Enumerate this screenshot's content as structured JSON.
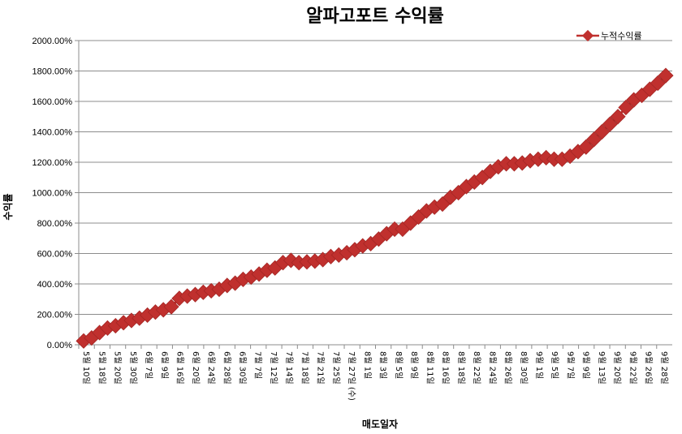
{
  "chart_data": {
    "type": "line",
    "title": "알파고포트 수익률",
    "xlabel": "매도일자",
    "ylabel": "수익률",
    "ylim": [
      0,
      2000
    ],
    "yticks": [
      "0.00%",
      "200.00%",
      "400.00%",
      "600.00%",
      "800.00%",
      "1000.00%",
      "1200.00%",
      "1400.00%",
      "1600.00%",
      "1800.00%",
      "2000.00%"
    ],
    "legend": {
      "position": "top-right"
    },
    "grid": true,
    "colors": {
      "series": "#c0302e",
      "gridline": "#8c8c8c",
      "axis": "#8c8c8c"
    },
    "x_tick_labels": [
      "5월 10일",
      "5월 18일",
      "5월 20일",
      "5월 30일",
      "6월 7일",
      "6월 9일",
      "6월 16일",
      "6월 20일",
      "6월 24일",
      "6월 28일",
      "6월 30일",
      "7월 7일",
      "7월 12일",
      "7월 14일",
      "7월 18일",
      "7월 21일",
      "7월 25일",
      "7월 27일 (수)",
      "8월 1일",
      "8월 3일",
      "8월 5일",
      "8월 9일",
      "8월 11일",
      "8월 16일",
      "8월 18일",
      "8월 22일",
      "8월 24일",
      "8월 26일",
      "8월 30일",
      "9월 1일",
      "9월 5일",
      "9월 7일",
      "9월 9일",
      "9월 13일",
      "9월 20일",
      "9월 22일",
      "9월 26일",
      "9월 28일"
    ],
    "series": [
      {
        "name": "누적수익률",
        "values": [
          25,
          45,
          80,
          110,
          125,
          145,
          160,
          175,
          195,
          215,
          230,
          250,
          305,
          320,
          330,
          345,
          355,
          365,
          390,
          405,
          430,
          445,
          465,
          490,
          505,
          540,
          555,
          540,
          545,
          550,
          560,
          580,
          590,
          605,
          625,
          650,
          665,
          695,
          730,
          760,
          760,
          800,
          840,
          880,
          905,
          925,
          970,
          1000,
          1040,
          1070,
          1100,
          1140,
          1170,
          1190,
          1190,
          1195,
          1210,
          1220,
          1230,
          1220,
          1220,
          1240,
          1270,
          1300,
          1350,
          1400,
          1450,
          1500,
          1560,
          1610,
          1640,
          1680,
          1720,
          1770
        ]
      }
    ]
  }
}
